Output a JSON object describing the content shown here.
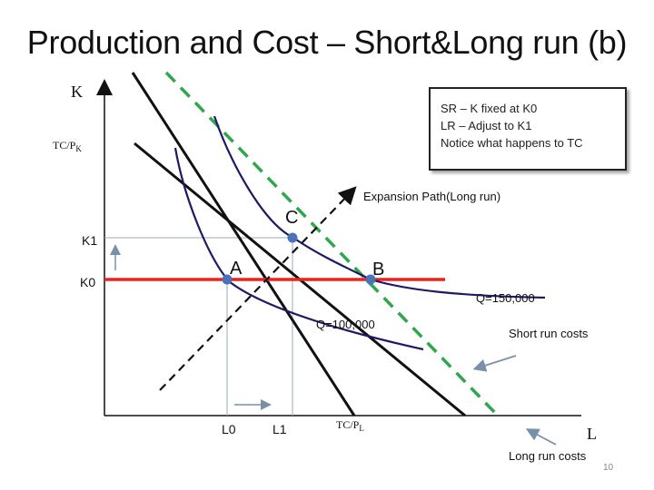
{
  "title": "Production and Cost – Short&Long run (b)",
  "axes": {
    "y_label": "K",
    "x_label": "L",
    "y_intercept_label": "TC/P",
    "y_intercept_sub": "K",
    "x_intercept_label": "TC/P",
    "x_intercept_sub": "L"
  },
  "ticks": {
    "k1": "K1",
    "k0": "K0",
    "l0": "L0",
    "l1": "L1"
  },
  "points": {
    "a": "A",
    "b": "B",
    "c": "C"
  },
  "isoquants": {
    "low": "Q=100,000",
    "high": "Q=150,000"
  },
  "annotations": {
    "expansion_path": "Expansion Path(Long run)",
    "short_run_costs": "Short run costs",
    "long_run_costs": "Long run costs"
  },
  "notes": [
    "SR – K fixed at K0",
    "LR – Adjust to K1",
    "Notice what happens to TC"
  ],
  "page_number": "10",
  "colors": {
    "short_run_line": "#e8231e",
    "long_run_line": "#2ea84a",
    "isoquant": "#1f1a66",
    "point": "#4a72b8",
    "guide": "#7a8fa8"
  }
}
